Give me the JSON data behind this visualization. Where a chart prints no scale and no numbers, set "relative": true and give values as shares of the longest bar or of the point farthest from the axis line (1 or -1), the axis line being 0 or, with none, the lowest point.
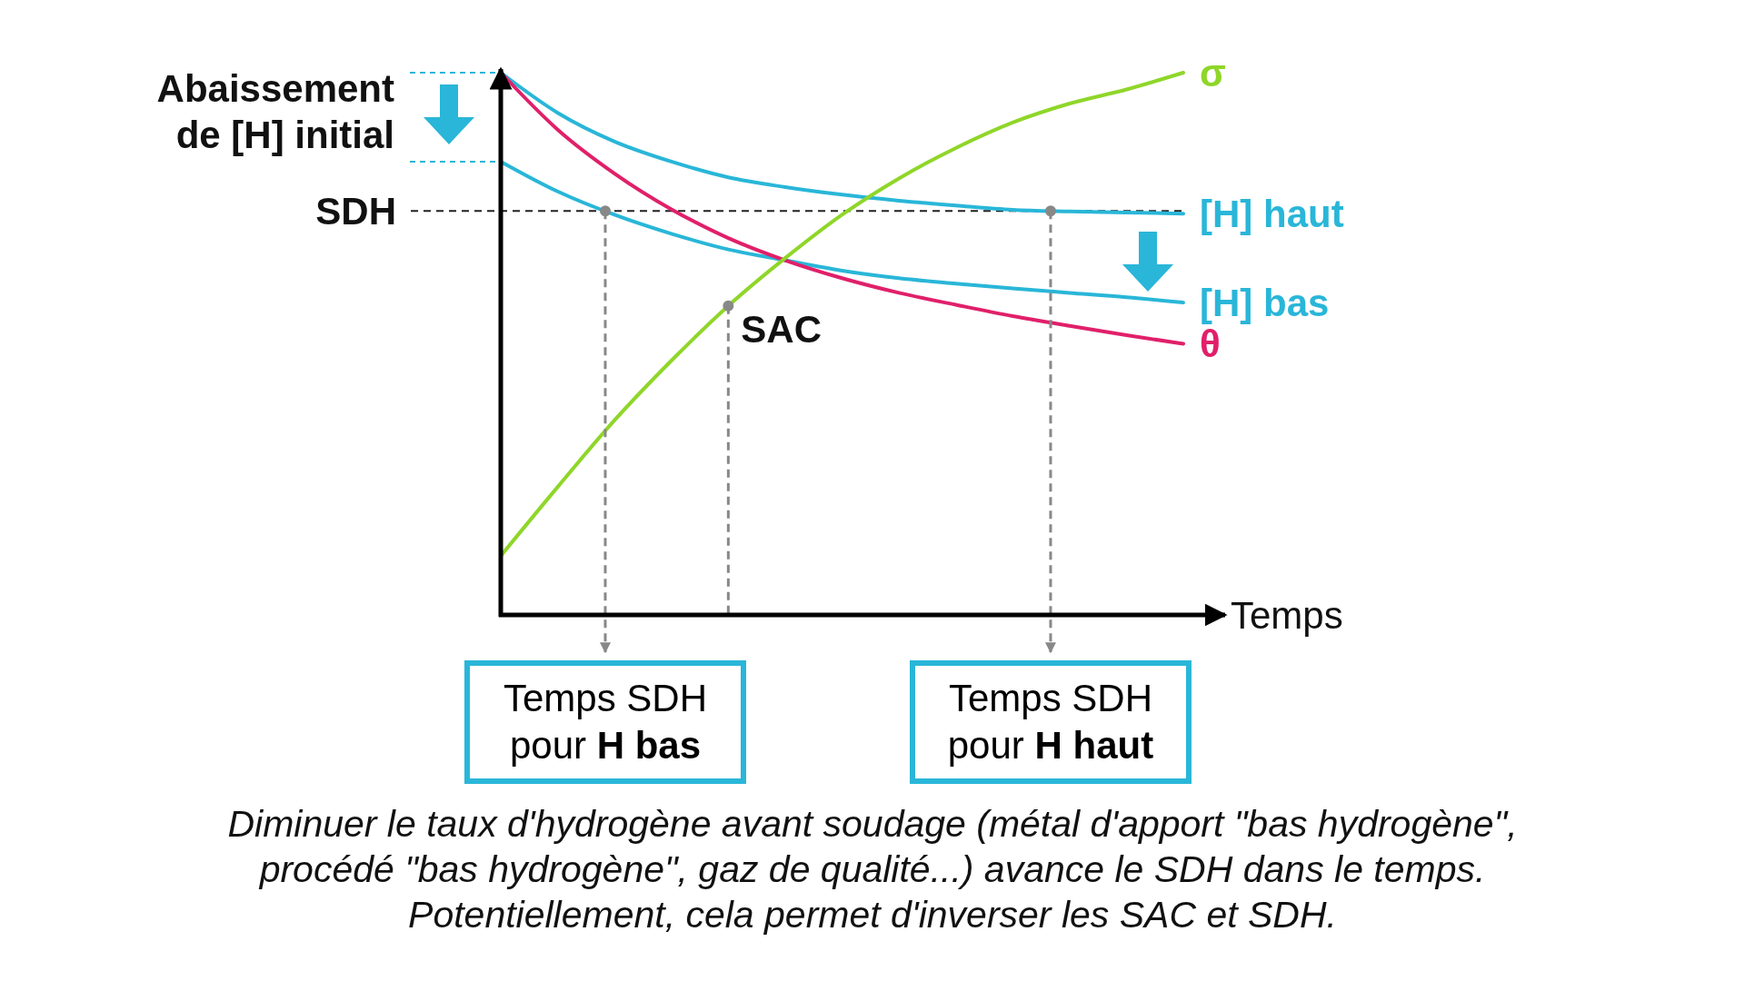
{
  "chart_data": {
    "type": "line",
    "relative": true,
    "xlabel": "Temps",
    "categories": [
      null,
      null,
      null,
      null,
      null,
      null,
      null,
      null,
      null,
      null,
      null,
      null,
      null
    ],
    "series": [
      {
        "name": "[H] haut",
        "color": "#29b6d8",
        "values": [
          1.0,
          0.926,
          0.873,
          0.836,
          0.807,
          0.789,
          0.775,
          0.764,
          0.755,
          0.747,
          0.744,
          0.742,
          0.74
        ]
      },
      {
        "name": "[H] bas",
        "color": "#29b6d8",
        "values": [
          0.836,
          0.781,
          0.738,
          0.703,
          0.674,
          0.654,
          0.635,
          0.621,
          0.611,
          0.602,
          0.594,
          0.586,
          0.576
        ]
      },
      {
        "name": "θ",
        "color": "#e0206a",
        "values": [
          1.0,
          0.895,
          0.814,
          0.748,
          0.695,
          0.654,
          0.621,
          0.594,
          0.572,
          0.551,
          0.533,
          0.516,
          0.5
        ]
      },
      {
        "name": "σ",
        "color": "#8fd629",
        "values": [
          0.109,
          0.236,
          0.359,
          0.469,
          0.57,
          0.658,
          0.738,
          0.805,
          0.861,
          0.908,
          0.943,
          0.969,
          1.0
        ]
      }
    ],
    "ref_lines": [
      {
        "axis": "y",
        "value": 0.745,
        "label": "SDH",
        "color": "#222222",
        "line_style": "dashed"
      }
    ],
    "annotations": [
      "Abaissement de [H] initial",
      "SAC",
      "Temps SDH pour H bas",
      "Temps SDH pour H haut",
      "Diminuer le taux d'hydrogène avant soudage (métal d'apport \"bas hydrogène\",",
      "procédé \"bas hydrogène\", gaz de qualité...) avance le SDH dans le temps.",
      "Potentiellement, cela permet d'inverser les SAC et SDH."
    ]
  }
}
